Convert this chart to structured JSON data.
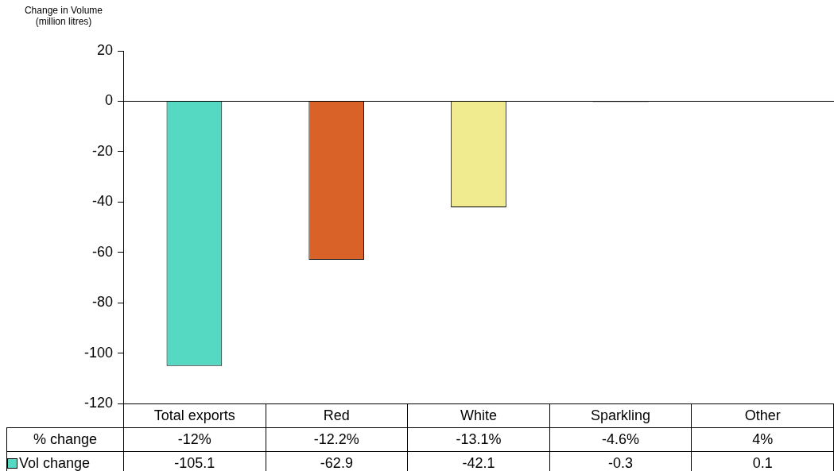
{
  "chart_data": {
    "type": "bar",
    "ylabel": "Change in Volume (million litres)",
    "categories": [
      "Total exports",
      "Red",
      "White",
      "Sparkling",
      "Other"
    ],
    "series": [
      {
        "name": "Vol change",
        "color": "#55d9c3",
        "colors": [
          "#55d9c3",
          "#d86228",
          "#f0eb8f",
          "#7f7f7f",
          "#7f7f7f"
        ],
        "values": [
          -105.1,
          -62.9,
          -42.1,
          -0.3,
          0.1
        ]
      }
    ],
    "ylim": [
      -120,
      20
    ],
    "yticks": [
      -120,
      -100,
      -80,
      -60,
      -40,
      -20,
      0,
      20
    ],
    "data_labels": true,
    "legend": "bottom",
    "annotations": [
      "% change",
      "-12%",
      "-12.2%",
      "-13.1%",
      "-4.6%",
      "4%"
    ]
  }
}
